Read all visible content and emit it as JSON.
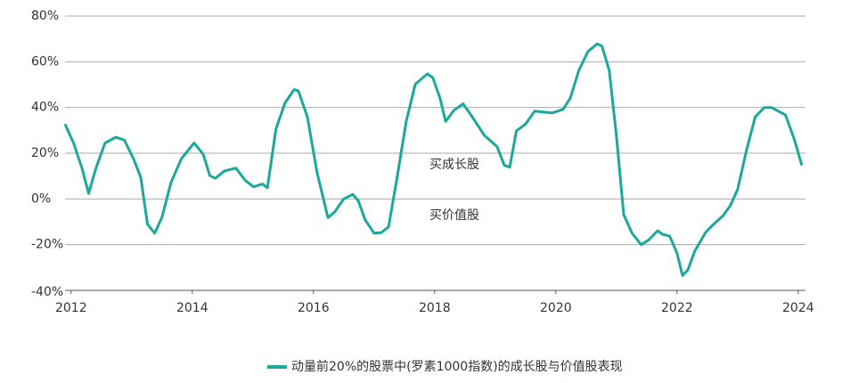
{
  "chart_data": {
    "type": "line",
    "x": [
      2011.9,
      2012.04,
      2012.18,
      2012.29,
      2012.41,
      2012.56,
      2012.74,
      2012.88,
      2013.03,
      2013.15,
      2013.26,
      2013.38,
      2013.5,
      2013.65,
      2013.82,
      2014.03,
      2014.18,
      2014.29,
      2014.38,
      2014.53,
      2014.72,
      2014.87,
      2015.01,
      2015.16,
      2015.24,
      2015.38,
      2015.53,
      2015.68,
      2015.75,
      2015.9,
      2016.06,
      2016.24,
      2016.35,
      2016.5,
      2016.65,
      2016.74,
      2016.85,
      2017,
      2017.12,
      2017.24,
      2017.38,
      2017.53,
      2017.68,
      2017.88,
      2017.97,
      2018.09,
      2018.18,
      2018.32,
      2018.47,
      2018.62,
      2018.82,
      2019.03,
      2019.15,
      2019.24,
      2019.35,
      2019.5,
      2019.65,
      2019.94,
      2020.12,
      2020.24,
      2020.38,
      2020.53,
      2020.68,
      2020.76,
      2020.88,
      2021,
      2021.12,
      2021.26,
      2021.41,
      2021.53,
      2021.68,
      2021.76,
      2021.88,
      2022,
      2022.09,
      2022.18,
      2022.29,
      2022.47,
      2022.59,
      2022.76,
      2022.88,
      2023,
      2023.15,
      2023.29,
      2023.44,
      2023.56,
      2023.79,
      2023.94,
      2024.06
    ],
    "series": [
      {
        "name": "动量前20%的股票中(罗素1000指数)的成长股与价值股表现",
        "color": "#1aa99a",
        "values": [
          32.7,
          24.5,
          13.5,
          2.4,
          13.5,
          24.5,
          27,
          25.7,
          17.6,
          9.4,
          -11,
          -15,
          -8,
          7.3,
          17.6,
          24.5,
          19.6,
          10.2,
          9,
          12.2,
          13.5,
          8.2,
          5.3,
          6.5,
          4.9,
          30.6,
          42,
          47.8,
          47.3,
          35.9,
          11.4,
          -8.2,
          -5.7,
          0,
          2,
          -0.8,
          -9,
          -15,
          -14.7,
          -12.2,
          9.4,
          33.9,
          50.2,
          54.7,
          53,
          44,
          33.9,
          38.8,
          41.6,
          35.9,
          27.8,
          22.9,
          14.7,
          13.9,
          29.8,
          32.7,
          38.4,
          37.6,
          39.2,
          44.1,
          56.3,
          64.5,
          67.8,
          66.9,
          56.3,
          27.8,
          -6.9,
          -15.1,
          -20,
          -18,
          -13.9,
          -15.5,
          -16.3,
          -23.7,
          -33.5,
          -31,
          -22.9,
          -14.7,
          -11.4,
          -7.3,
          -2.9,
          4.1,
          21.6,
          35.9,
          40,
          40,
          36.7,
          25.7,
          14.7
        ]
      }
    ],
    "annotations": [
      "买成长股",
      "买价值股"
    ],
    "xlim": [
      2011.9,
      2024.12
    ],
    "xticks": [
      2012,
      2014,
      2016,
      2018,
      2020,
      2022,
      2024
    ],
    "ylim": [
      -40,
      80
    ],
    "yticks": [
      {
        "value": -40,
        "label": "-40%"
      },
      {
        "value": -20,
        "label": "-20%"
      },
      {
        "value": 0,
        "label": "0%"
      },
      {
        "value": 20,
        "label": "20%"
      },
      {
        "value": 40,
        "label": "40%"
      },
      {
        "value": 60,
        "label": "60%"
      },
      {
        "value": 80,
        "label": "80%"
      }
    ],
    "grid": true,
    "legend": "bottom"
  }
}
